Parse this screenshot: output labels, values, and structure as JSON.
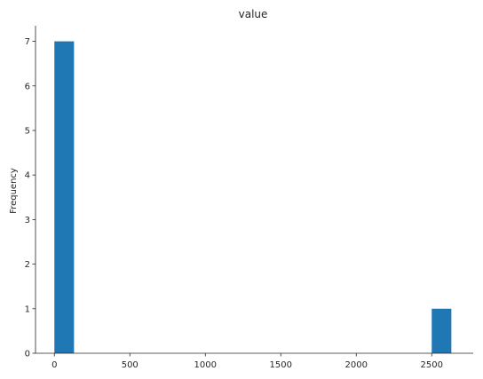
{
  "chart_data": {
    "type": "bar",
    "title": "value",
    "xlabel": "",
    "ylabel": "Frequency",
    "xlim": [
      -125,
      2775
    ],
    "ylim": [
      0,
      7.35
    ],
    "xticks": [
      0,
      500,
      1000,
      1500,
      2000,
      2500
    ],
    "yticks": [
      0,
      1,
      2,
      3,
      4,
      5,
      6,
      7
    ],
    "bins": [
      {
        "x0": 0,
        "x1": 130,
        "count": 7
      },
      {
        "x0": 2500,
        "x1": 2630,
        "count": 1
      }
    ],
    "grid": false,
    "legend": "none",
    "colors": {
      "bar": "#1f77b4",
      "axis": "#262626"
    }
  }
}
